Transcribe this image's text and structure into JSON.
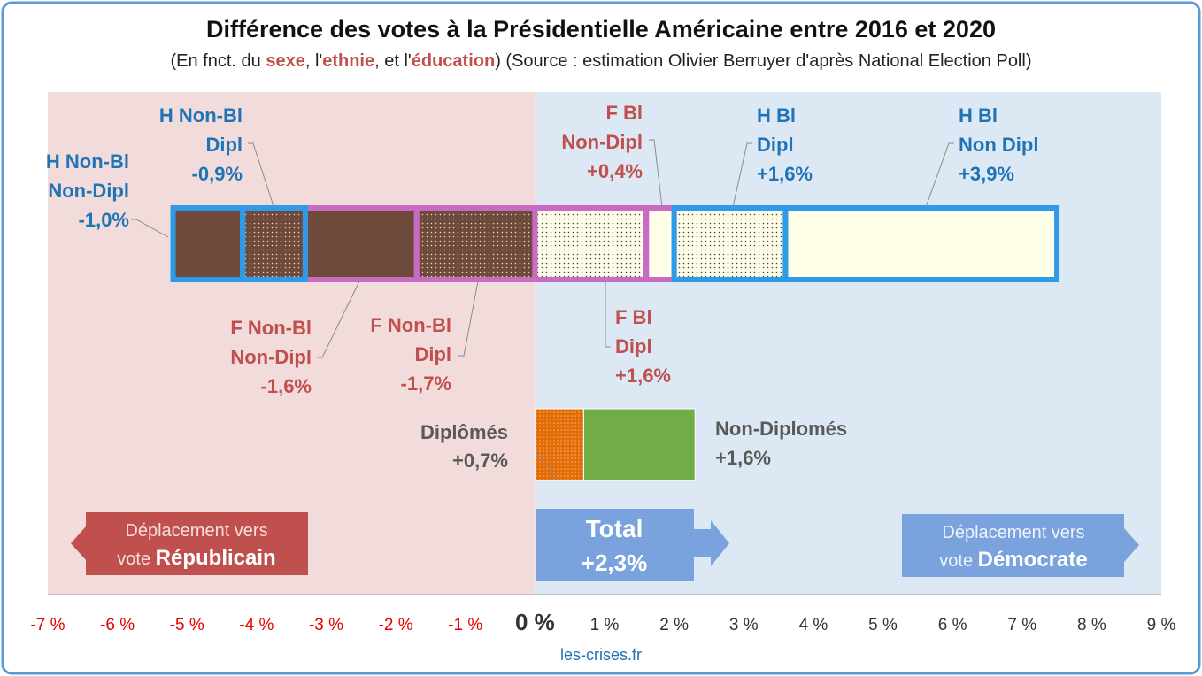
{
  "title": "Différence des votes à la Présidentielle Américaine entre 2016 et 2020",
  "subtitle": {
    "before": "(En fnct. du ",
    "w1": "sexe",
    "mid1": ", l'",
    "w2": "ethnie",
    "mid2": ", et l'",
    "w3": "éducation",
    "after": ") (Source : estimation Olivier Berruyer d'après National Election Poll)"
  },
  "credit": "les-crises.fr",
  "colors": {
    "frame": "#5b9bd5",
    "bg_left": "#f2dcdb",
    "bg_right": "#dce9f5",
    "men_outline": "#2e9be8",
    "women_outline": "#c76cc2",
    "brown": "#6e4a3a",
    "cream": "#fefde8",
    "orange": "#e36c0a",
    "green": "#70ad47",
    "label_blue": "#1f73b7",
    "label_red": "#c0504d",
    "label_grey": "#595959",
    "arrow_red": "#c0504d",
    "arrow_blue": "#7aa2dc",
    "axis_neg": "#e60000",
    "axis_pos": "#333333"
  },
  "chart_data": {
    "type": "bar",
    "orientation": "horizontal",
    "xlim": [
      -7,
      9
    ],
    "x_ticks": [
      "-7 %",
      "-6 %",
      "-5 %",
      "-4 %",
      "-3 %",
      "-2 %",
      "-1 %",
      "0 %",
      "1 %",
      "2 %",
      "3 %",
      "4 %",
      "5 %",
      "6 %",
      "7 %",
      "8 %",
      "9 %"
    ],
    "series": [
      {
        "label": [
          "H Non-Bl",
          "Non-Dipl",
          "-1,0%"
        ],
        "value": -1.0,
        "group": "H",
        "fill": "brown",
        "dotted": false
      },
      {
        "label": [
          "H Non-Bl",
          "Dipl",
          "-0,9%"
        ],
        "value": -0.9,
        "group": "H",
        "fill": "brown",
        "dotted": true
      },
      {
        "label": [
          "F Non-Bl",
          "Non-Dipl",
          "-1,6%"
        ],
        "value": -1.6,
        "group": "F",
        "fill": "brown",
        "dotted": false
      },
      {
        "label": [
          "F Non-Bl",
          "Dipl",
          "-1,7%"
        ],
        "value": -1.7,
        "group": "F",
        "fill": "brown",
        "dotted": true
      },
      {
        "label": [
          "F Bl",
          "Dipl",
          "+1,6%"
        ],
        "value": 1.6,
        "group": "F",
        "fill": "cream",
        "dotted": true
      },
      {
        "label": [
          "F Bl",
          "Non-Dipl",
          "+0,4%"
        ],
        "value": 0.4,
        "group": "F",
        "fill": "cream",
        "dotted": false
      },
      {
        "label": [
          "H Bl",
          "Dipl",
          "+1,6%"
        ],
        "value": 1.6,
        "group": "H",
        "fill": "cream",
        "dotted": true
      },
      {
        "label": [
          "H Bl",
          "Non Dipl",
          "+3,9%"
        ],
        "value": 3.9,
        "group": "H",
        "fill": "cream",
        "dotted": false
      }
    ],
    "totals": [
      {
        "label": [
          "Diplômés",
          "+0,7%"
        ],
        "value": 0.7,
        "fill": "orange"
      },
      {
        "label": [
          "Non-Diplomés",
          "+1,6%"
        ],
        "value": 1.6,
        "fill": "green"
      }
    ],
    "total": [
      "Total",
      "+2,3%"
    ],
    "arrow_rep": [
      "Déplacement vers",
      "vote ",
      "Républicain"
    ],
    "arrow_dem": [
      "Déplacement vers",
      "vote ",
      "Démocrate"
    ]
  }
}
